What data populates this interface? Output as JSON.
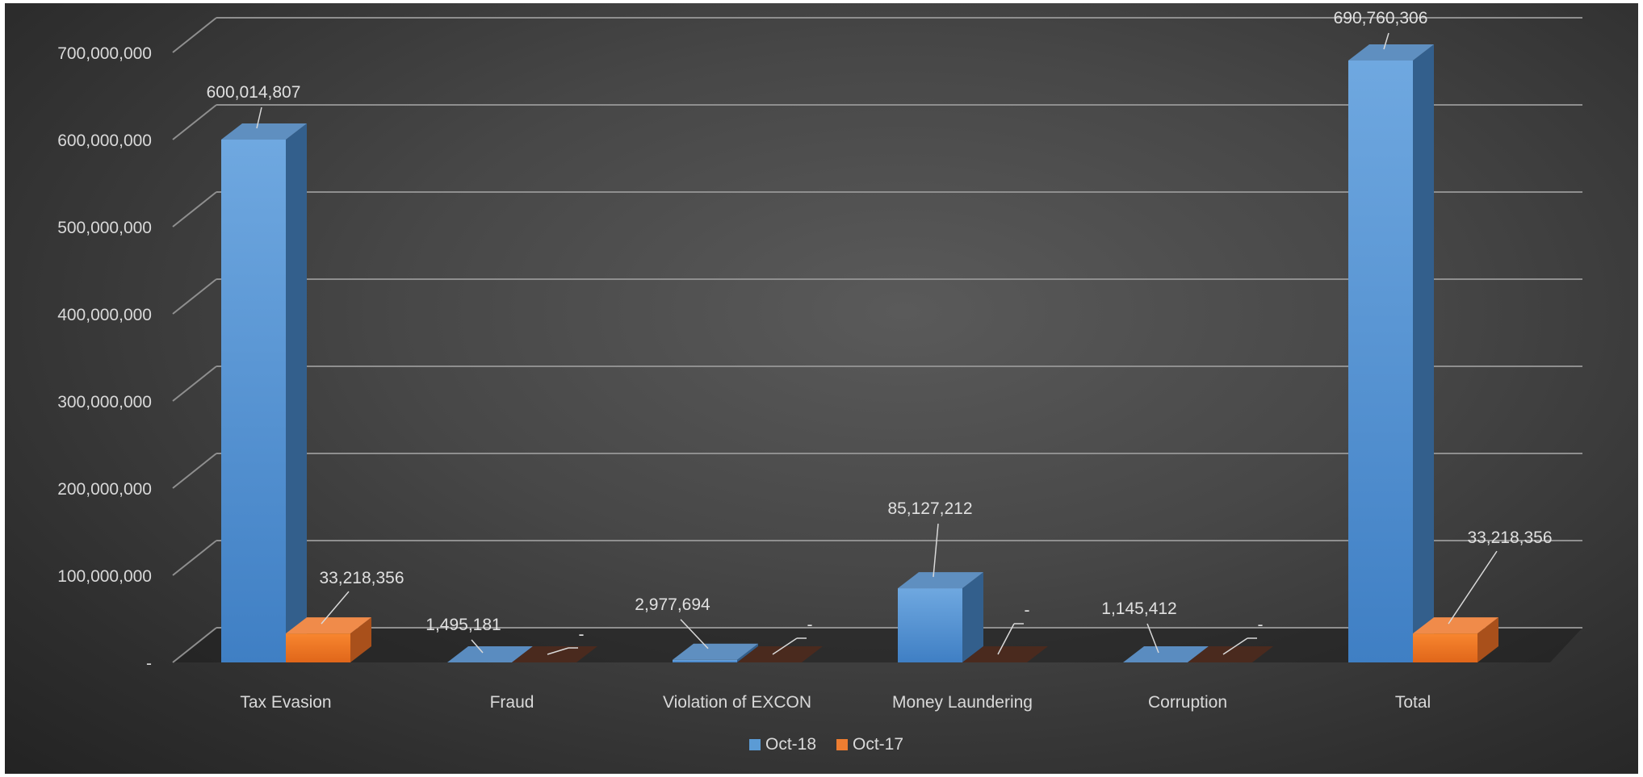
{
  "header_fragment": "",
  "chart_data": {
    "type": "bar",
    "style": "3d-clustered-column",
    "title": "",
    "xlabel": "",
    "ylabel": "",
    "ylim": [
      0,
      700000000
    ],
    "ytick_step": 100000000,
    "yticks": [
      "-",
      "100,000,000",
      "200,000,000",
      "300,000,000",
      "400,000,000",
      "500,000,000",
      "600,000,000",
      "700,000,000"
    ],
    "categories": [
      "Tax Evasion",
      "Fraud",
      "Violation of EXCON",
      "Money Laundering",
      "Corruption",
      "Total"
    ],
    "series": [
      {
        "name": "Oct-18",
        "color": "#5b9bd5",
        "values": [
          600014807,
          1495181,
          2977694,
          85127212,
          1145412,
          690760306
        ],
        "labels": [
          "600,014,807",
          "1,495,181",
          "2,977,694",
          "85,127,212",
          "1,145,412",
          "690,760,306"
        ]
      },
      {
        "name": "Oct-17",
        "color": "#ed7d31",
        "values": [
          33218356,
          0,
          0,
          0,
          0,
          33218356
        ],
        "labels": [
          "33,218,356",
          "-",
          "-",
          "-",
          "-",
          "33,218,356"
        ]
      }
    ],
    "grid": true,
    "legend_position": "bottom"
  }
}
